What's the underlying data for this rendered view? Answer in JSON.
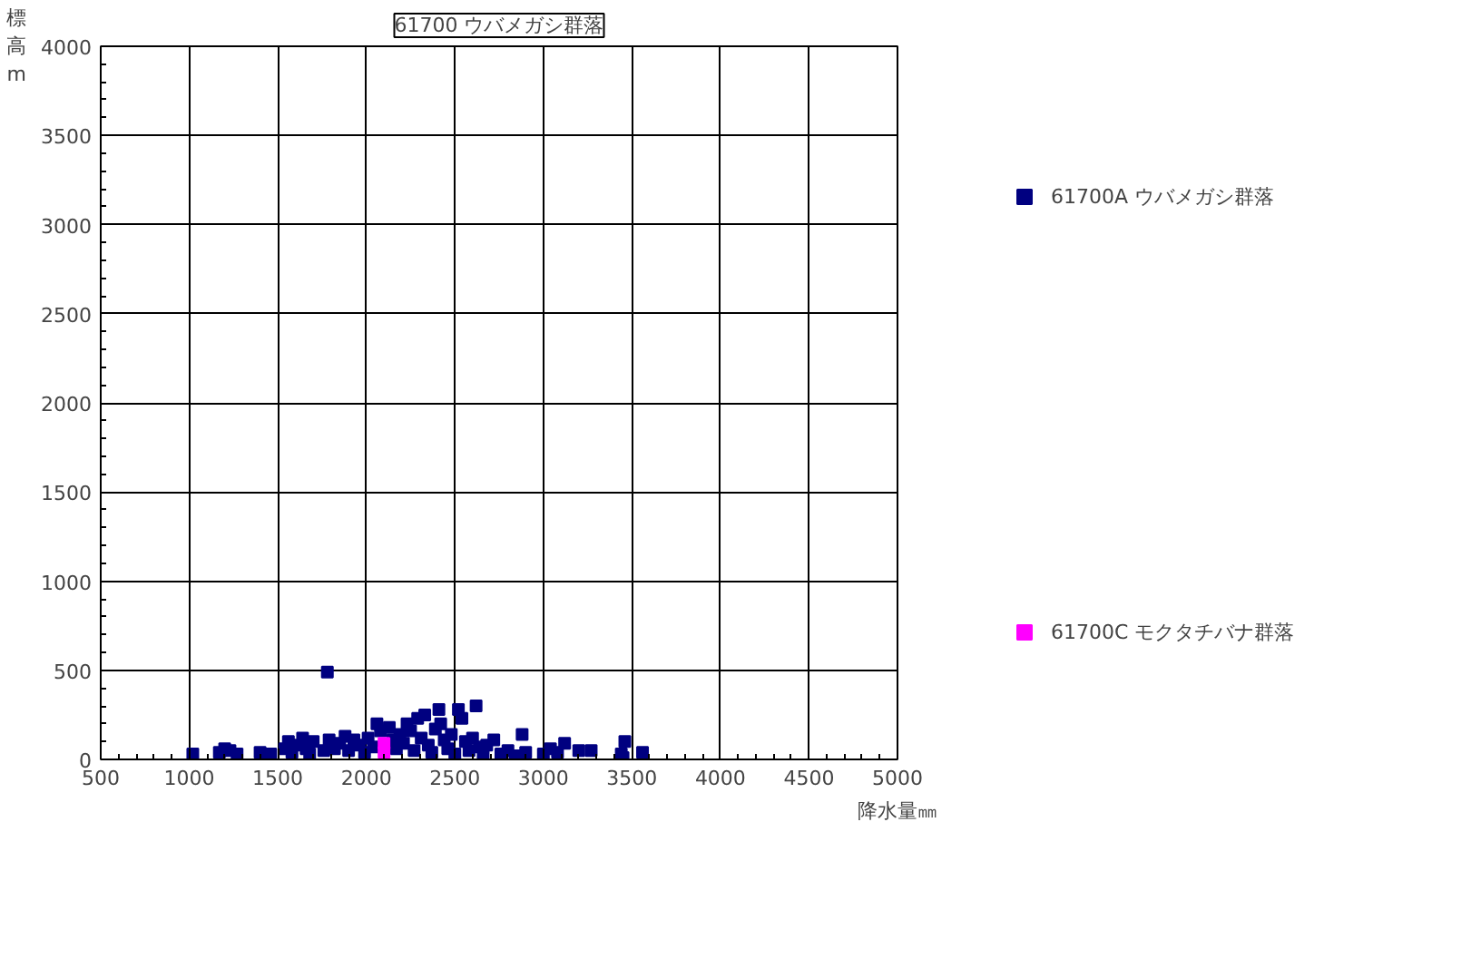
{
  "chart_data": {
    "type": "scatter",
    "title": "61700 ウバメガシ群落",
    "xlabel": "降水量㎜",
    "ylabel": "標高m",
    "xlim": [
      500,
      5000
    ],
    "ylim": [
      0,
      4000
    ],
    "xticks": [
      500,
      1000,
      1500,
      2000,
      2500,
      3000,
      3500,
      4000,
      4500,
      5000
    ],
    "yticks": [
      0,
      500,
      1000,
      1500,
      2000,
      2500,
      3000,
      3500,
      4000
    ],
    "grid": true,
    "legend": "right",
    "marker": "square",
    "series": [
      {
        "name": "61700A ウバメガシ群落",
        "color": "#000080",
        "x": [
          1020,
          1170,
          1200,
          1230,
          1270,
          1400,
          1460,
          1540,
          1560,
          1580,
          1620,
          1640,
          1660,
          1680,
          1700,
          1760,
          1780,
          1790,
          1820,
          1850,
          1880,
          1900,
          1930,
          1960,
          1990,
          2010,
          2040,
          2060,
          2080,
          2130,
          2150,
          2170,
          2190,
          2210,
          2230,
          2250,
          2270,
          2290,
          2310,
          2330,
          2350,
          2370,
          2390,
          2410,
          2420,
          2440,
          2460,
          2480,
          2500,
          2520,
          2540,
          2560,
          2580,
          2600,
          2620,
          2640,
          2660,
          2680,
          2720,
          2760,
          2800,
          2840,
          2880,
          2900,
          3000,
          3040,
          3080,
          3120,
          3200,
          3270,
          3440,
          3460,
          3450,
          3560
        ],
        "values": [
          30,
          40,
          60,
          50,
          30,
          40,
          30,
          60,
          100,
          40,
          80,
          120,
          60,
          30,
          100,
          50,
          490,
          110,
          60,
          90,
          130,
          50,
          110,
          80,
          40,
          120,
          70,
          200,
          160,
          180,
          110,
          60,
          140,
          90,
          200,
          160,
          50,
          230,
          120,
          250,
          80,
          40,
          170,
          280,
          200,
          110,
          60,
          140,
          30,
          280,
          230,
          100,
          50,
          120,
          300,
          70,
          30,
          80,
          110,
          30,
          50,
          20,
          140,
          40,
          30,
          60,
          40,
          90,
          50,
          50,
          30,
          100,
          10,
          40
        ]
      },
      {
        "name": "61700C モクタチバナ群落",
        "color": "#ff00ff",
        "x": [
          2100,
          2100
        ],
        "values": [
          90,
          40
        ]
      }
    ]
  }
}
